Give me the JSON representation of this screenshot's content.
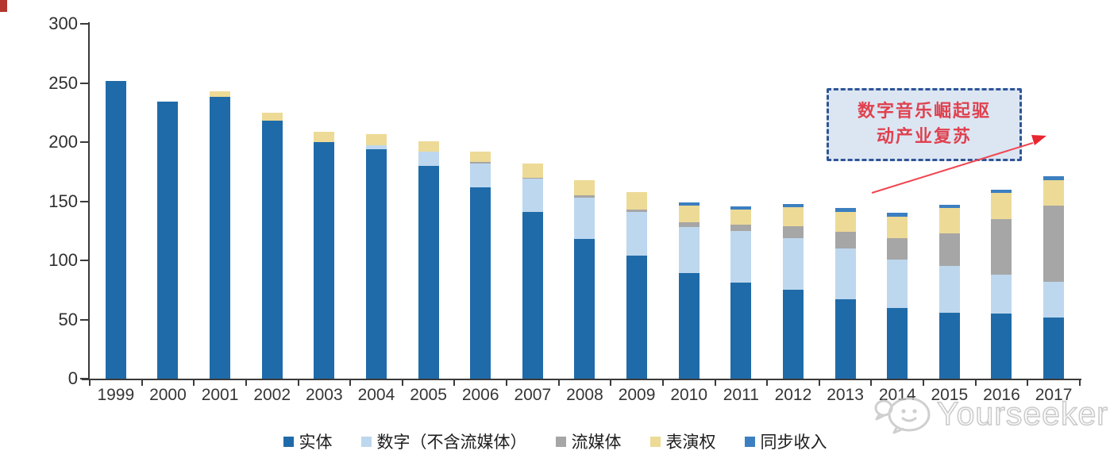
{
  "chart_data": {
    "type": "bar",
    "stacked": true,
    "categories": [
      "1999",
      "2000",
      "2001",
      "2002",
      "2003",
      "2004",
      "2005",
      "2006",
      "2007",
      "2008",
      "2009",
      "2010",
      "2011",
      "2012",
      "2013",
      "2014",
      "2015",
      "2016",
      "2017"
    ],
    "series": [
      {
        "name": "实体",
        "color": "#1f6ba9",
        "values": [
          252,
          234,
          238,
          218,
          200,
          194,
          180,
          162,
          141,
          118,
          104,
          89,
          81,
          75,
          67,
          60,
          56,
          55,
          52
        ]
      },
      {
        "name": "数字（不含流媒体）",
        "color": "#bdd7ee",
        "values": [
          0,
          0,
          0,
          0,
          0,
          3,
          12,
          20,
          28,
          35,
          37,
          39,
          44,
          44,
          43,
          41,
          39,
          33,
          30
        ]
      },
      {
        "name": "流媒体",
        "color": "#a6a6a6",
        "values": [
          0,
          0,
          0,
          0,
          0,
          0,
          0,
          1,
          1,
          2,
          2,
          4,
          5,
          10,
          14,
          18,
          28,
          47,
          64
        ]
      },
      {
        "name": "表演权",
        "color": "#edda96",
        "values": [
          0,
          0,
          5,
          7,
          9,
          10,
          9,
          9,
          12,
          13,
          15,
          14,
          13,
          16,
          17,
          18,
          21,
          22,
          22
        ]
      },
      {
        "name": "同步收入",
        "color": "#3c7fc0",
        "values": [
          0,
          0,
          0,
          0,
          0,
          0,
          0,
          0,
          0,
          0,
          0,
          3,
          3,
          3,
          3,
          3,
          3,
          3,
          3
        ]
      }
    ],
    "yticks": [
      0,
      50,
      100,
      150,
      200,
      250,
      300
    ],
    "ylim": [
      0,
      300
    ],
    "grid": false,
    "legend_position": "bottom"
  },
  "annotation": {
    "text": "数字音乐崛起驱动产业复苏",
    "text_lines": [
      "数字音乐崛起驱",
      "动产业复苏"
    ],
    "box_fill": "#dce6f3",
    "border_color": "#2f5597",
    "text_color": "#e0414f",
    "arrow_color": "#f04650"
  },
  "watermark": {
    "text": "Yourseeker",
    "logo": "speech-bubbles-smiley-icon"
  }
}
